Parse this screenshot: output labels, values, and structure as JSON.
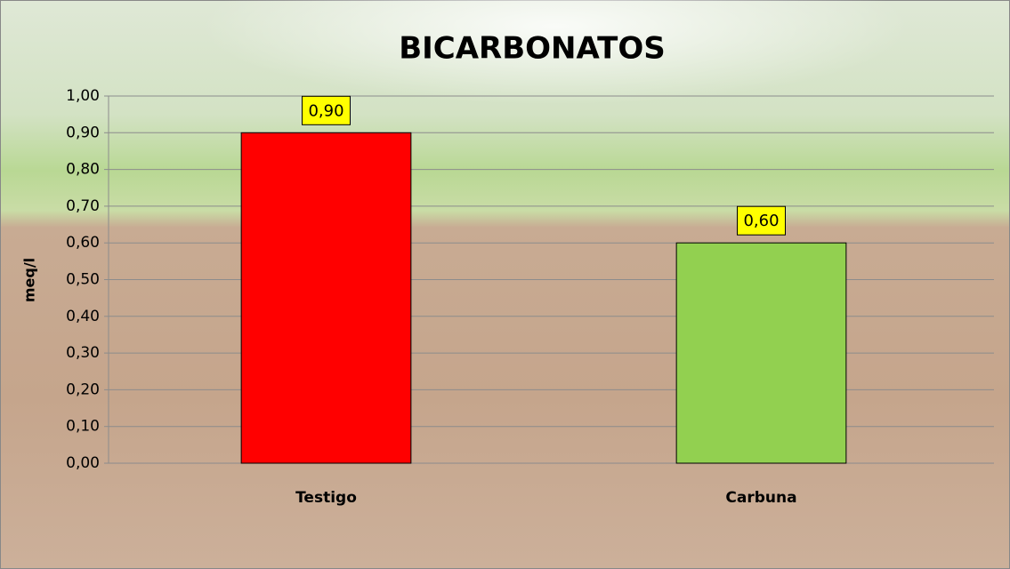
{
  "chart_data": {
    "type": "bar",
    "title": "BICARBONATOS",
    "y_label": "meq/l",
    "categories": [
      "Testigo",
      "Carbuna"
    ],
    "values": [
      0.9,
      0.6
    ],
    "value_labels": [
      "0,90",
      "0,60"
    ],
    "colors": [
      "#ff0000",
      "#92d050"
    ],
    "ylim": [
      0,
      1
    ],
    "yticks": [
      {
        "value": 0,
        "label": "0,00"
      },
      {
        "value": 0.1,
        "label": "0,10"
      },
      {
        "value": 0.2,
        "label": "0,20"
      },
      {
        "value": 0.3,
        "label": "0,30"
      },
      {
        "value": 0.4,
        "label": "0,40"
      },
      {
        "value": 0.5,
        "label": "0,50"
      },
      {
        "value": 0.6,
        "label": "0,60"
      },
      {
        "value": 0.7,
        "label": "0,70"
      },
      {
        "value": 0.8,
        "label": "0,80"
      },
      {
        "value": 0.9,
        "label": "0,90"
      },
      {
        "value": 1,
        "label": "1,00"
      }
    ],
    "grid": true
  }
}
